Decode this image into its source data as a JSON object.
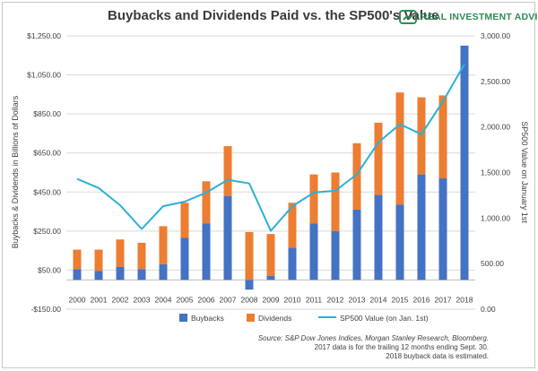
{
  "title": "Buybacks and Dividends Paid vs. the SP500's Value",
  "brand": {
    "name": "REAL INVESTMENT ADVICE",
    "icon": "ria-logo-icon",
    "color": "#2e8b57"
  },
  "source_notes": [
    "Source: S&P Dow Jones Indices, Morgan Stanley Research, Bloomberg.",
    "2017 data is for the trailing 12 months ending Sept. 30.",
    "2018 buyback data is estimated."
  ],
  "chart_data": {
    "type": "bar",
    "stacked": true,
    "title": "Buybacks and Dividends Paid vs. the SP500's Value",
    "categories": [
      "2000",
      "2001",
      "2002",
      "2003",
      "2004",
      "2005",
      "2006",
      "2007",
      "2008",
      "2009",
      "2010",
      "2011",
      "2012",
      "2013",
      "2014",
      "2015",
      "2016",
      "2017",
      "2018"
    ],
    "series": [
      {
        "name": "Buybacks",
        "axis": "left",
        "color": "#4472c4",
        "values": [
          55,
          45,
          67,
          55,
          80,
          215,
          290,
          430,
          -50,
          20,
          165,
          290,
          250,
          360,
          435,
          385,
          540,
          520,
          1200
        ]
      },
      {
        "name": "Dividends",
        "axis": "left",
        "color": "#ed7d31",
        "values": [
          100,
          110,
          140,
          135,
          195,
          180,
          215,
          255,
          245,
          215,
          230,
          250,
          300,
          340,
          370,
          575,
          395,
          425,
          0
        ]
      },
      {
        "name": "SP500 Value (on Jan. 1st)",
        "axis": "right",
        "type": "line",
        "color": "#2bb0d8",
        "values": [
          1430,
          1330,
          1140,
          880,
          1130,
          1180,
          1280,
          1420,
          1380,
          860,
          1130,
          1280,
          1300,
          1480,
          1830,
          2030,
          1920,
          2280,
          2690
        ]
      }
    ],
    "left_axis": {
      "label": "Buybacks & Dividends in Billions of Dollars",
      "min": -150,
      "max": 1250,
      "ticks": [
        -150,
        50,
        250,
        450,
        650,
        850,
        1050,
        1250
      ],
      "tick_labels": [
        "-$150.00",
        "$50.00",
        "$250.00",
        "$450.00",
        "$650.00",
        "$850.00",
        "$1,050.00",
        "$1,250.00"
      ]
    },
    "right_axis": {
      "label": "SP500 Value on January 1st",
      "min": 0,
      "max": 3000,
      "ticks": [
        0,
        500,
        1000,
        1500,
        2000,
        2500,
        3000
      ],
      "tick_labels": [
        "0.00",
        "500.00",
        "1,000.00",
        "1,500.00",
        "2,000.00",
        "2,500.00",
        "3,000.00"
      ]
    },
    "grid": true,
    "legend_position": "bottom"
  }
}
